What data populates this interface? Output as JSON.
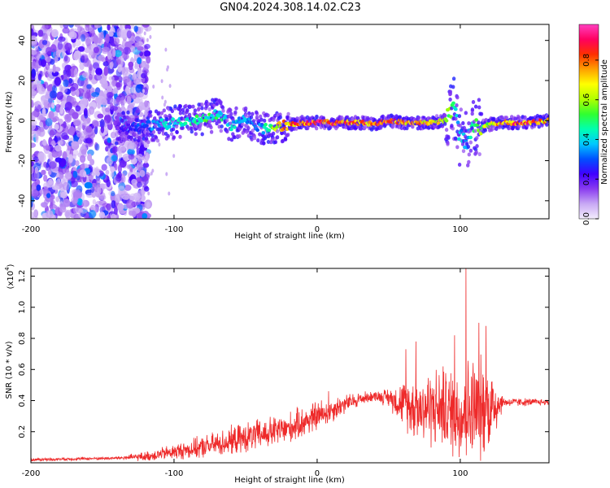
{
  "title": "GN04.2024.308.14.02.C23",
  "chart_data": [
    {
      "type": "heatmap",
      "xlabel": "Height of straight line (km)",
      "ylabel": "Frequency (Hz)",
      "xlim": [
        -200,
        162
      ],
      "ylim": [
        -49,
        48
      ],
      "xticks": [
        -200,
        -100,
        0,
        100
      ],
      "yticks": [
        -40,
        -20,
        0,
        20,
        40
      ],
      "colorbar": {
        "label": "Normalized spectral amplitude",
        "range": [
          0,
          1
        ],
        "ticks": [
          "0.0",
          "0.2",
          "0.4",
          "0.6",
          "0.8"
        ],
        "colors": [
          "#f4eefd",
          "#c8a8f4",
          "#8a3cf0",
          "#4000ff",
          "#0050ff",
          "#00c8ff",
          "#00ffb0",
          "#30ff30",
          "#b0ff00",
          "#ffff00",
          "#ffa000",
          "#ff3000",
          "#ff0060",
          "#ff40c0"
        ]
      },
      "trace": {
        "x": [
          -140,
          -120,
          -100,
          -80,
          -70,
          -60,
          -50,
          -40,
          -30,
          -20,
          -10,
          0,
          10,
          20,
          30,
          40,
          50,
          60,
          70,
          80,
          90,
          95,
          100,
          105,
          110,
          120,
          130,
          140,
          150,
          162
        ],
        "freq": [
          -4,
          -3,
          -1,
          1,
          3,
          -2,
          0,
          -4,
          -3,
          -2,
          -1,
          -1,
          -1,
          -1,
          -1,
          -2,
          0,
          -1,
          -1,
          -1,
          0,
          8,
          -8,
          -10,
          -4,
          -2,
          -1,
          -1,
          -1,
          0
        ],
        "amplitude": [
          0.2,
          0.35,
          0.45,
          0.55,
          0.5,
          0.45,
          0.4,
          0.35,
          0.7,
          0.85,
          0.9,
          0.95,
          0.9,
          0.9,
          0.85,
          0.9,
          0.9,
          0.85,
          0.8,
          0.8,
          0.7,
          0.5,
          0.4,
          0.4,
          0.55,
          0.7,
          0.85,
          0.9,
          0.9,
          0.8
        ]
      }
    },
    {
      "type": "line",
      "xlabel": "Height of straight line (km)",
      "ylabel": "SNR (10 * v/v)",
      "yscale_label": "(x10",
      "yscale_exp": "4",
      "yscale_close": ")",
      "xlim": [
        -200,
        162
      ],
      "ylim": [
        0,
        1.25
      ],
      "xticks": [
        -200,
        -100,
        0,
        100
      ],
      "yticks": [
        0.2,
        0.4,
        0.6,
        0.8,
        1.0,
        1.2
      ],
      "ytick_labels": [
        "0.2",
        "0.4",
        "0.6",
        "0.8",
        "1.0",
        "1.2"
      ],
      "color": "#ee2a2a",
      "envelope": {
        "x": [
          -200,
          -140,
          -120,
          -100,
          -80,
          -60,
          -40,
          -20,
          0,
          20,
          30,
          40,
          50,
          60,
          70,
          80,
          90,
          100,
          110,
          120,
          125,
          130,
          162
        ],
        "y": [
          0.02,
          0.03,
          0.04,
          0.07,
          0.1,
          0.14,
          0.18,
          0.22,
          0.3,
          0.38,
          0.41,
          0.43,
          0.42,
          0.38,
          0.35,
          0.36,
          0.34,
          0.32,
          0.34,
          0.35,
          0.38,
          0.39,
          0.39
        ]
      },
      "noise": {
        "x": [
          -200,
          -140,
          -120,
          -100,
          -80,
          -60,
          -40,
          -20,
          0,
          20,
          40,
          50,
          60,
          70,
          80,
          90,
          100,
          110,
          120,
          125,
          130,
          162
        ],
        "amp": [
          0.01,
          0.01,
          0.03,
          0.05,
          0.07,
          0.09,
          0.1,
          0.1,
          0.1,
          0.06,
          0.03,
          0.06,
          0.14,
          0.22,
          0.25,
          0.25,
          0.33,
          0.35,
          0.3,
          0.2,
          0.03,
          0.02
        ]
      },
      "spikes": [
        {
          "x": 104,
          "y": 1.25
        },
        {
          "x": 96,
          "y": 0.82
        },
        {
          "x": 69,
          "y": 0.78
        },
        {
          "x": 62,
          "y": 0.73
        },
        {
          "x": 113,
          "y": 0.9
        },
        {
          "x": 118,
          "y": 0.88
        },
        {
          "x": 88,
          "y": 0.62
        },
        {
          "x": 8,
          "y": 0.46
        }
      ]
    }
  ]
}
